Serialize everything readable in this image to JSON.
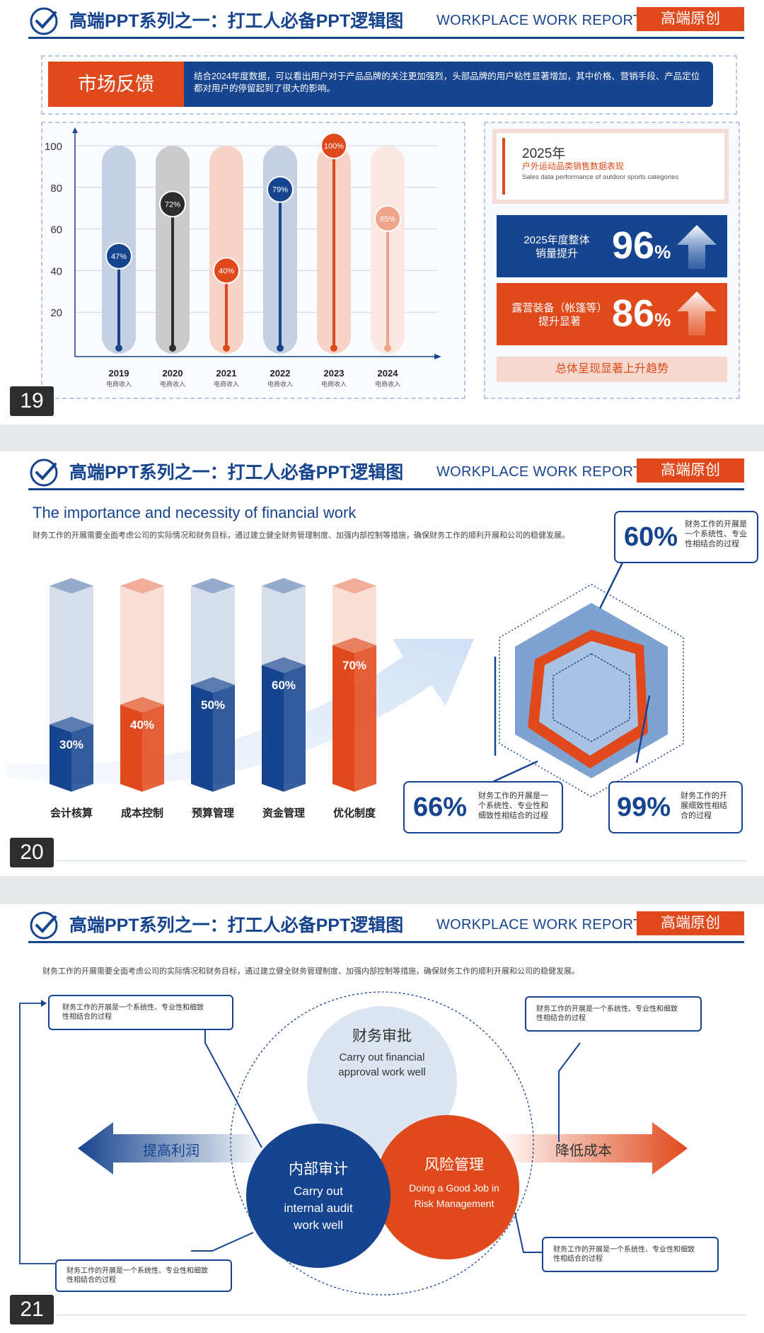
{
  "header": {
    "title": "高端PPT系列之一：打工人必备PPT逻辑图",
    "subtitle": "WORKPLACE WORK REPORT",
    "badge": "高端原创"
  },
  "slide19": {
    "page_number": "19",
    "banner_label": "市场反馈",
    "banner_text": "结合2024年度数据，可以看出用户对于产品品牌的关注更加强烈，头部品牌的用户粘性显著增加，其中价格、营销手段、产品定位都对用户的停留起到了很大的影响。",
    "chart_data": {
      "type": "bar",
      "categories": [
        "2019",
        "2020",
        "2021",
        "2022",
        "2023",
        "2024"
      ],
      "category_sublabels": [
        "电商收入",
        "电商收入",
        "电商收入",
        "电商收入",
        "电商收入",
        "电商收入"
      ],
      "values": [
        47,
        72,
        40,
        79,
        100,
        65
      ],
      "value_labels": [
        "47%",
        "72%",
        "40%",
        "79%",
        "100%",
        "65%"
      ],
      "yticks": [
        "100",
        "80",
        "60",
        "40",
        "20"
      ],
      "ylim": [
        0,
        100
      ],
      "colors": [
        "#16448e",
        "#2d2d2d",
        "#e0491c",
        "#16448e",
        "#e0491c",
        "#f0a48a"
      ]
    },
    "info": {
      "year": "2025年",
      "cn_sub": "户外运动品类销售数据表现",
      "en_sub": "Sales data performance of outdoor sports categories"
    },
    "stats": [
      {
        "label_line1": "2025年度整体",
        "label_line2": "销量提升",
        "value": "96",
        "unit": "%",
        "color": "#16448e"
      },
      {
        "label_line1": "露营装备（帐篷等）",
        "label_line2": "提升显著",
        "value": "86",
        "unit": "%",
        "color": "#e0491c"
      }
    ],
    "trend_text": "总体呈现显著上升趋势"
  },
  "slide20": {
    "page_number": "20",
    "heading": "The importance and necessity of financial work",
    "desc": "财务工作的开展需要全面考虑公司的实际情况和财务目标，通过建立健全财务管理制度、加强内部控制等措施，确保财务工作的顺利开展和公司的稳健发展。",
    "chart_data": {
      "type": "bar",
      "categories": [
        "会计核算",
        "成本控制",
        "预算管理",
        "资金管理",
        "优化制度"
      ],
      "values": [
        30,
        40,
        50,
        60,
        70
      ],
      "value_labels": [
        "30%",
        "40%",
        "50%",
        "60%",
        "70%"
      ],
      "ylim": [
        0,
        100
      ],
      "colors": [
        "#16448e",
        "#e0491c",
        "#16448e",
        "#16448e",
        "#e0491c"
      ]
    },
    "callouts": [
      {
        "value": "60%",
        "text_lines": [
          "财务工作的开展是",
          "一个系统性、专业",
          "性相结合的过程"
        ]
      },
      {
        "value": "66%",
        "text_lines": [
          "财务工作的开展是一",
          "个系统性、专业性和",
          "细致性相结合的过程"
        ]
      },
      {
        "value": "99%",
        "text_lines": [
          "财务工作的开",
          "展细致性相结",
          "合的过程"
        ]
      }
    ]
  },
  "slide21": {
    "page_number": "21",
    "desc": "财务工作的开展需要全面考虑公司的实际情况和财务目标，通过建立健全财务管理制度、加强内部控制等措施，确保财务工作的顺利开展和公司的稳健发展。",
    "circle_top": {
      "title": "财务审批",
      "en_line1": "Carry out financial",
      "en_line2": "approval work well"
    },
    "circle_left": {
      "title": "内部审计",
      "en_line1": "Carry out",
      "en_line2": "internal audit",
      "en_line3": "work well"
    },
    "circle_right": {
      "title": "风险管理",
      "en_line1": "Doing a Good Job in",
      "en_line2": "Risk Management"
    },
    "arrow_left_label": "提高利润",
    "arrow_right_label": "降低成本",
    "notes": [
      {
        "line1": "财务工作的开展是一个系统性、专业性和细致",
        "line2": "性相结合的过程"
      },
      {
        "line1": "财务工作的开展是一个系统性、专业性和细致",
        "line2": "性相结合的过程"
      },
      {
        "line1": "财务工作的开展是一个系统性、专业性和细致",
        "line2": "性相结合的过程"
      },
      {
        "line1": "财务工作的开展是一个系统性、专业性和细致",
        "line2": "性相结合的过程"
      }
    ]
  }
}
